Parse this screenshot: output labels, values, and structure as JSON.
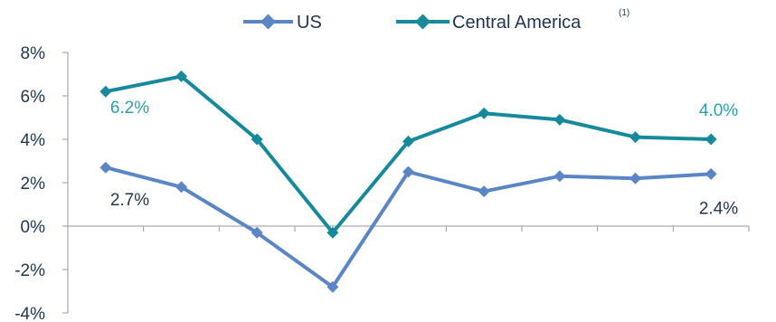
{
  "chart_data": {
    "type": "line",
    "x": [
      1,
      2,
      3,
      4,
      5,
      6,
      7,
      8,
      9
    ],
    "ylim": [
      -4,
      8
    ],
    "yticks": [
      -4,
      -2,
      0,
      2,
      4,
      6,
      8
    ],
    "ytick_labels": [
      "-4%",
      "-2%",
      "0%",
      "2%",
      "4%",
      "6%",
      "8%"
    ],
    "grid": false,
    "legend_position": "top",
    "series": [
      {
        "name": "US",
        "color": "#5b86c6",
        "values": [
          2.7,
          1.8,
          -0.3,
          -2.8,
          2.5,
          1.6,
          2.3,
          2.2,
          2.4
        ]
      },
      {
        "name": "Central America",
        "name_superscript": "(1)",
        "color": "#168a9c",
        "values": [
          6.2,
          6.9,
          4.0,
          -0.3,
          3.9,
          5.2,
          4.9,
          4.1,
          4.0
        ]
      }
    ],
    "annotations": [
      {
        "series": 1,
        "index": 0,
        "text": "6.2%",
        "color": "#2a9fb0"
      },
      {
        "series": 1,
        "index": 8,
        "text": "4.0%",
        "color": "#2a9fb0"
      },
      {
        "series": 0,
        "index": 0,
        "text": "2.7%",
        "color": "#1f3550"
      },
      {
        "series": 0,
        "index": 8,
        "text": "2.4%",
        "color": "#1f3550"
      }
    ]
  }
}
